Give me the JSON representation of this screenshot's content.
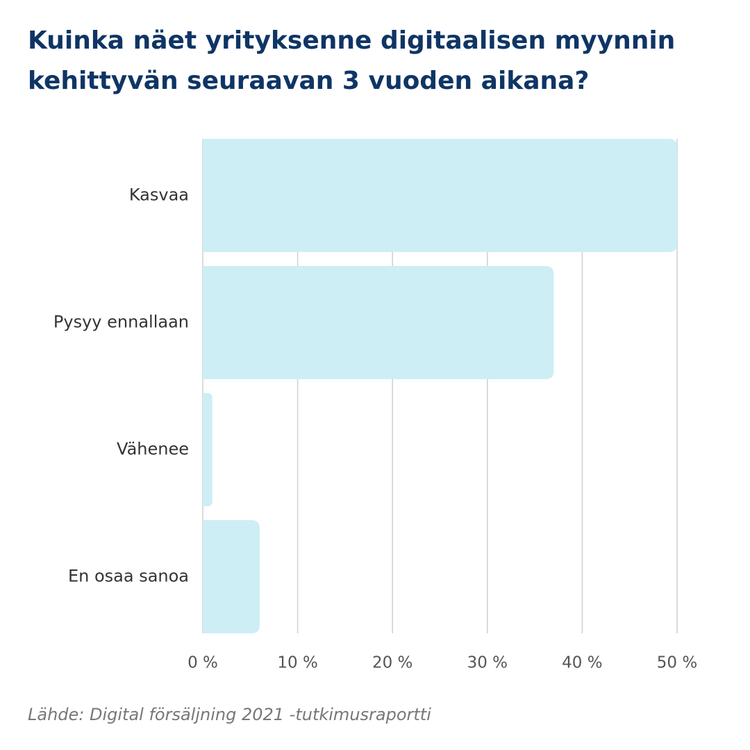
{
  "title_lines": [
    "Kuinka näet yrityksenne digitaalisen myynnin",
    "kehittyvän seuraavan 3 vuoden aikana?"
  ],
  "source": "Lähde: Digital försäljning 2021 -tutkimusraportti",
  "colors": {
    "title": "#0f3565",
    "bar": "#cdeef4",
    "grid": "#cfcfcf",
    "label": "#333333",
    "tick": "#555555",
    "source": "#777777"
  },
  "chart_data": {
    "type": "bar",
    "orientation": "horizontal",
    "categories": [
      "Kasvaa",
      "Pysyy ennallaan",
      "Vähenee",
      "En osaa sanoa"
    ],
    "values": [
      50,
      37,
      1,
      6
    ],
    "xlim": [
      0,
      50
    ],
    "xticks": [
      0,
      10,
      20,
      30,
      40,
      50
    ],
    "xtick_labels": [
      "0 %",
      "10 %",
      "20 %",
      "30 %",
      "40 %",
      "50 %"
    ],
    "grid": "vertical",
    "legend": "none"
  }
}
